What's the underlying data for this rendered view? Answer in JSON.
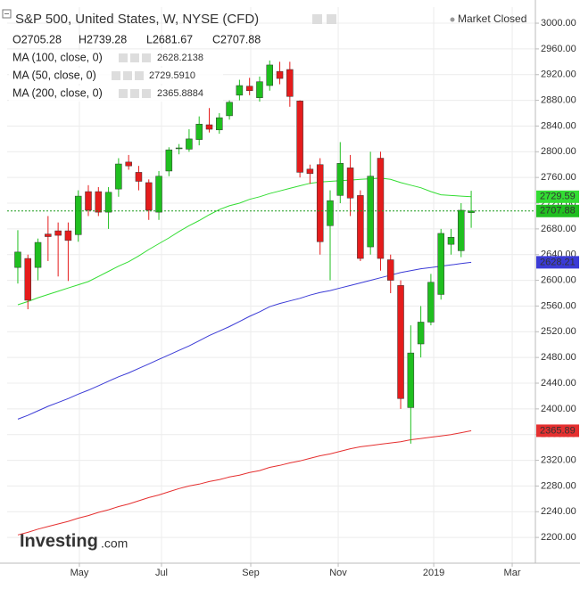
{
  "chart_data": {
    "type": "candlestick",
    "title": "S&P 500, United States, W, NYSE (CFD)",
    "status": "Market Closed",
    "ohlc_labels": [
      "O2705.28",
      "H2739.28",
      "L2681.67",
      "C2707.88"
    ],
    "last_label": "2707.88",
    "logo": [
      "Investing",
      ".com"
    ],
    "up_color": "#1fbf1f",
    "down_color": "#e51c1c",
    "grid": true,
    "candles": {
      "open": [
        2620,
        2634,
        2620,
        2672,
        2677,
        2677,
        2671,
        2738,
        2738,
        2706,
        2742,
        2784,
        2768,
        2752,
        2706,
        2770,
        2805,
        2804,
        2819,
        2842,
        2834,
        2856,
        2888,
        2902,
        2884,
        2903,
        2925,
        2928,
        2879,
        2773,
        2780,
        2685,
        2732,
        2775,
        2732,
        2652,
        2790,
        2632,
        2592,
        2402,
        2501,
        2535,
        2578,
        2656,
        2646,
        2705.28
      ],
      "high": [
        2678,
        2640,
        2665,
        2700,
        2690,
        2690,
        2740,
        2748,
        2745,
        2745,
        2790,
        2795,
        2778,
        2757,
        2770,
        2807,
        2812,
        2835,
        2855,
        2868,
        2860,
        2880,
        2912,
        2915,
        2917,
        2942,
        2940,
        2940,
        2880,
        2780,
        2790,
        2740,
        2815,
        2795,
        2740,
        2800,
        2800,
        2640,
        2600,
        2530,
        2560,
        2610,
        2680,
        2680,
        2720,
        2739.28
      ],
      "low": [
        2595,
        2555,
        2600,
        2630,
        2606,
        2599,
        2660,
        2700,
        2700,
        2680,
        2730,
        2772,
        2740,
        2694,
        2694,
        2762,
        2796,
        2800,
        2810,
        2830,
        2828,
        2850,
        2880,
        2888,
        2878,
        2895,
        2905,
        2870,
        2760,
        2750,
        2640,
        2600,
        2720,
        2700,
        2630,
        2640,
        2615,
        2580,
        2400,
        2346,
        2480,
        2530,
        2570,
        2640,
        2636,
        2681.67
      ],
      "close": [
        2644,
        2569,
        2659,
        2668,
        2670,
        2662,
        2731,
        2709,
        2706,
        2737,
        2781,
        2778,
        2754,
        2709,
        2762,
        2803,
        2806,
        2820,
        2843,
        2835,
        2853,
        2877,
        2903,
        2895,
        2909,
        2935,
        2914,
        2886,
        2768,
        2766,
        2660,
        2724,
        2782,
        2728,
        2634,
        2762,
        2634,
        2600,
        2416,
        2487,
        2535,
        2597,
        2673,
        2667,
        2709,
        2707.88
      ]
    },
    "series": [
      {
        "name": "MA (100, close, 0)",
        "color": "#3b3bd6",
        "value_label": "2628.2138",
        "last_label": "2628.21",
        "values": [
          2384,
          2390,
          2397,
          2404,
          2410,
          2416,
          2423,
          2429,
          2436,
          2443,
          2450,
          2456,
          2463,
          2470,
          2477,
          2484,
          2491,
          2498,
          2506,
          2514,
          2521,
          2528,
          2536,
          2544,
          2551,
          2559,
          2564,
          2568,
          2572,
          2577,
          2581,
          2584,
          2588,
          2592,
          2596,
          2600,
          2604,
          2608,
          2612,
          2615,
          2618,
          2620,
          2622,
          2624,
          2626,
          2628
        ]
      },
      {
        "name": "MA (50, close, 0)",
        "color": "#33dd33",
        "value_label": "2729.5910",
        "last_label": "2729.59",
        "values": [
          2562,
          2567,
          2573,
          2578,
          2583,
          2588,
          2593,
          2598,
          2606,
          2614,
          2622,
          2629,
          2638,
          2648,
          2657,
          2666,
          2676,
          2685,
          2693,
          2702,
          2710,
          2716,
          2720,
          2726,
          2730,
          2735,
          2739,
          2743,
          2747,
          2751,
          2753,
          2754,
          2755,
          2756,
          2757,
          2758,
          2759,
          2757,
          2752,
          2748,
          2744,
          2738,
          2733,
          2732,
          2731,
          2730
        ]
      },
      {
        "name": "MA (200, close, 0)",
        "color": "#e53030",
        "value_label": "2365.8884",
        "last_label": "2365.89",
        "values": [
          2204,
          2208,
          2213,
          2217,
          2221,
          2225,
          2230,
          2234,
          2239,
          2243,
          2248,
          2252,
          2257,
          2262,
          2266,
          2271,
          2276,
          2280,
          2283,
          2287,
          2290,
          2294,
          2297,
          2301,
          2304,
          2309,
          2312,
          2316,
          2319,
          2323,
          2327,
          2330,
          2334,
          2338,
          2341,
          2343,
          2345,
          2347,
          2349,
          2352,
          2354,
          2356,
          2358,
          2360,
          2363,
          2366
        ]
      }
    ],
    "xlim": [
      -1.06,
      51.37
    ],
    "xticks": [
      {
        "value": 6.11,
        "label": "May"
      },
      {
        "value": 14.26,
        "label": "Jul"
      },
      {
        "value": 23.12,
        "label": "Sep"
      },
      {
        "value": 31.8,
        "label": "Nov"
      },
      {
        "value": 41.28,
        "label": "2019"
      },
      {
        "value": 49.07,
        "label": "Mar"
      }
    ],
    "ylim": [
      2160,
      3025
    ],
    "yticks": [
      {
        "value": 2200,
        "label": "2200.00"
      },
      {
        "value": 2240,
        "label": "2240.00"
      },
      {
        "value": 2280,
        "label": "2280.00"
      },
      {
        "value": 2320,
        "label": "2320.00"
      },
      {
        "value": 2360,
        "label": "2360.00"
      },
      {
        "value": 2400,
        "label": "2400.00"
      },
      {
        "value": 2440,
        "label": "2440.00"
      },
      {
        "value": 2480,
        "label": "2480.00"
      },
      {
        "value": 2520,
        "label": "2520.00"
      },
      {
        "value": 2560,
        "label": "2560.00"
      },
      {
        "value": 2600,
        "label": "2600.00"
      },
      {
        "value": 2640,
        "label": "2640.00"
      },
      {
        "value": 2680,
        "label": "2680.00"
      },
      {
        "value": 2720,
        "label": "2720.00"
      },
      {
        "value": 2760,
        "label": "2760.00"
      },
      {
        "value": 2800,
        "label": "2800.00"
      },
      {
        "value": 2840,
        "label": "2840.00"
      },
      {
        "value": 2880,
        "label": "2880.00"
      },
      {
        "value": 2920,
        "label": "2920.00"
      },
      {
        "value": 2960,
        "label": "2960.00"
      },
      {
        "value": 3000,
        "label": "3000.00"
      }
    ]
  }
}
